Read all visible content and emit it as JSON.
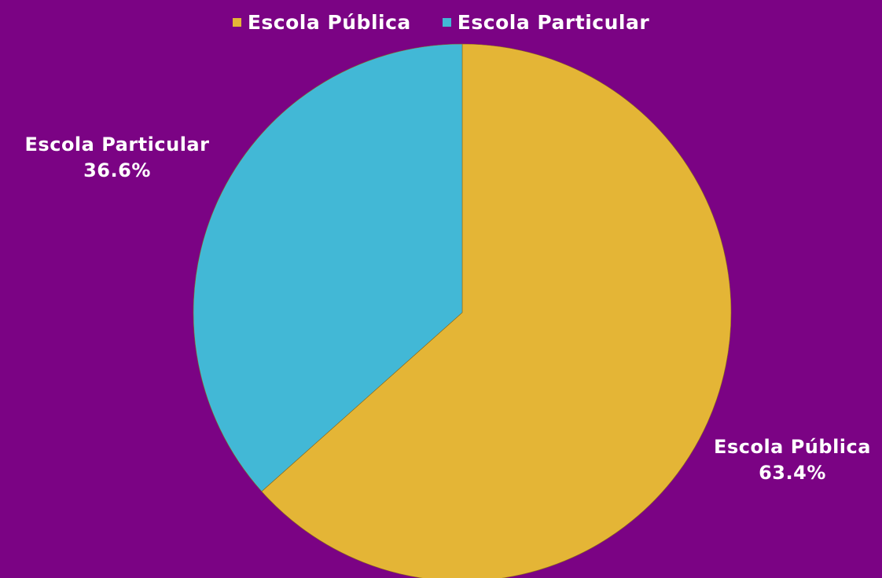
{
  "chart_data": {
    "type": "pie",
    "background": "#7b0384",
    "title": "",
    "legend_position": "top",
    "slices": [
      {
        "label": "Escola Pública",
        "value": 63.4,
        "value_label": "63.4%",
        "color": "#e4b536"
      },
      {
        "label": "Escola Particular",
        "value": 36.6,
        "value_label": "36.6%",
        "color": "#42b8d6"
      }
    ]
  }
}
